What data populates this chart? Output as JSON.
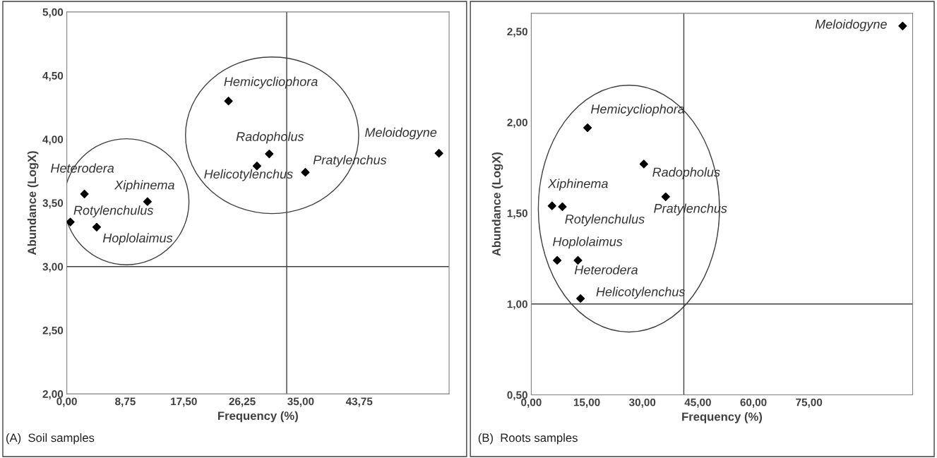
{
  "chart_data": [
    {
      "type": "scatter",
      "xlabel": "Frequency (%)",
      "ylabel": "Abundance (LogX)",
      "marker": "diamond",
      "grid": false,
      "legend": false,
      "x": [
        24.19,
        30.29,
        28.45,
        35.69,
        55.68,
        2.64,
        12.07,
        0.53,
        4.47
      ],
      "series": [
        {
          "color": "#000000",
          "values": [
            4.3,
            3.885,
            3.79,
            3.74,
            3.89,
            3.57,
            3.51,
            3.35,
            3.31
          ]
        }
      ],
      "xlim": [
        0,
        57.2
      ],
      "ylim": [
        2,
        5
      ],
      "xticks": [
        {
          "value": 0,
          "label": "0,00"
        },
        {
          "value": 8.75,
          "label": "8,75"
        },
        {
          "value": 17.5,
          "label": "17,50"
        },
        {
          "value": 26.25,
          "label": "26,25"
        },
        {
          "value": 35,
          "label": "35,00"
        },
        {
          "value": 43.75,
          "label": "43,75"
        }
      ],
      "yticks": [
        {
          "value": 2,
          "label": "2,00"
        },
        {
          "value": 2.5,
          "label": "2,50"
        },
        {
          "value": 3,
          "label": "3,00"
        },
        {
          "value": 3.5,
          "label": "3,50"
        },
        {
          "value": 4,
          "label": "4,00"
        },
        {
          "value": 4.5,
          "label": "4,50"
        },
        {
          "value": 5,
          "label": "5,00"
        }
      ],
      "ref_lines": [
        {
          "axis": "x",
          "value": 32.9
        },
        {
          "axis": "y",
          "value": 3.0
        }
      ],
      "annotations": [
        {
          "text": "Hemicycliophora",
          "x": 24.19,
          "y": 4.3
        },
        {
          "text": "Radopholus",
          "x": 30.29,
          "y": 3.885
        },
        {
          "text": "Helicotylenchus",
          "x": 28.45,
          "y": 3.79
        },
        {
          "text": "Pratylenchus",
          "x": 35.69,
          "y": 3.74
        },
        {
          "text": "Meloidogyne",
          "x": 55.68,
          "y": 3.89
        },
        {
          "text": "Heterodera",
          "x": 2.64,
          "y": 3.57
        },
        {
          "text": "Xiphinema",
          "x": 12.07,
          "y": 3.51
        },
        {
          "text": "Rotylenchulus",
          "x": 0.53,
          "y": 3.35
        },
        {
          "text": "Hoplolaimus",
          "x": 4.47,
          "y": 3.31
        },
        "(A)  Soil samples"
      ]
    },
    {
      "type": "scatter",
      "xlabel": "Frequency (%)",
      "ylabel": "Abundance (LogX)",
      "marker": "diamond",
      "grid": false,
      "legend": false,
      "x": [
        100.3,
        15.2,
        30.4,
        36.3,
        5.6,
        8.4,
        7.0,
        12.6,
        13.3
      ],
      "series": [
        {
          "color": "#000000",
          "values": [
            2.53,
            1.97,
            1.77,
            1.59,
            1.54,
            1.535,
            1.24,
            1.24,
            1.03
          ]
        }
      ],
      "xlim": [
        0,
        103
      ],
      "ylim": [
        0.5,
        2.6
      ],
      "xticks": [
        {
          "value": 0,
          "label": "0,00"
        },
        {
          "value": 15,
          "label": "15,00"
        },
        {
          "value": 30,
          "label": "30,00"
        },
        {
          "value": 45,
          "label": "45,00"
        },
        {
          "value": 60,
          "label": "60,00"
        },
        {
          "value": 75,
          "label": "75,00"
        }
      ],
      "yticks": [
        {
          "value": 0.5,
          "label": "0,50"
        },
        {
          "value": 1,
          "label": "1,00"
        },
        {
          "value": 1.5,
          "label": "1,50"
        },
        {
          "value": 2,
          "label": "2,00"
        },
        {
          "value": 2.5,
          "label": "2,50"
        }
      ],
      "ref_lines": [
        {
          "axis": "x",
          "value": 41.2
        },
        {
          "axis": "y",
          "value": 1.0
        }
      ],
      "annotations": [
        {
          "text": "Meloidogyne",
          "x": 100.3,
          "y": 2.53
        },
        {
          "text": "Hemicycliophora",
          "x": 15.2,
          "y": 1.97
        },
        {
          "text": "Radopholus",
          "x": 30.4,
          "y": 1.77
        },
        {
          "text": "Pratylenchus",
          "x": 36.3,
          "y": 1.59
        },
        {
          "text": "Xiphinema",
          "x": 5.6,
          "y": 1.54
        },
        {
          "text": "Rotylenchulus",
          "x": 8.4,
          "y": 1.535
        },
        {
          "text": "Hoplolaimus",
          "x": 7.0,
          "y": 1.24
        },
        {
          "text": "Heterodera",
          "x": 12.6,
          "y": 1.24
        },
        {
          "text": "Helicotylenchus",
          "x": 13.3,
          "y": 1.03
        },
        "(B)  Roots samples"
      ]
    }
  ]
}
